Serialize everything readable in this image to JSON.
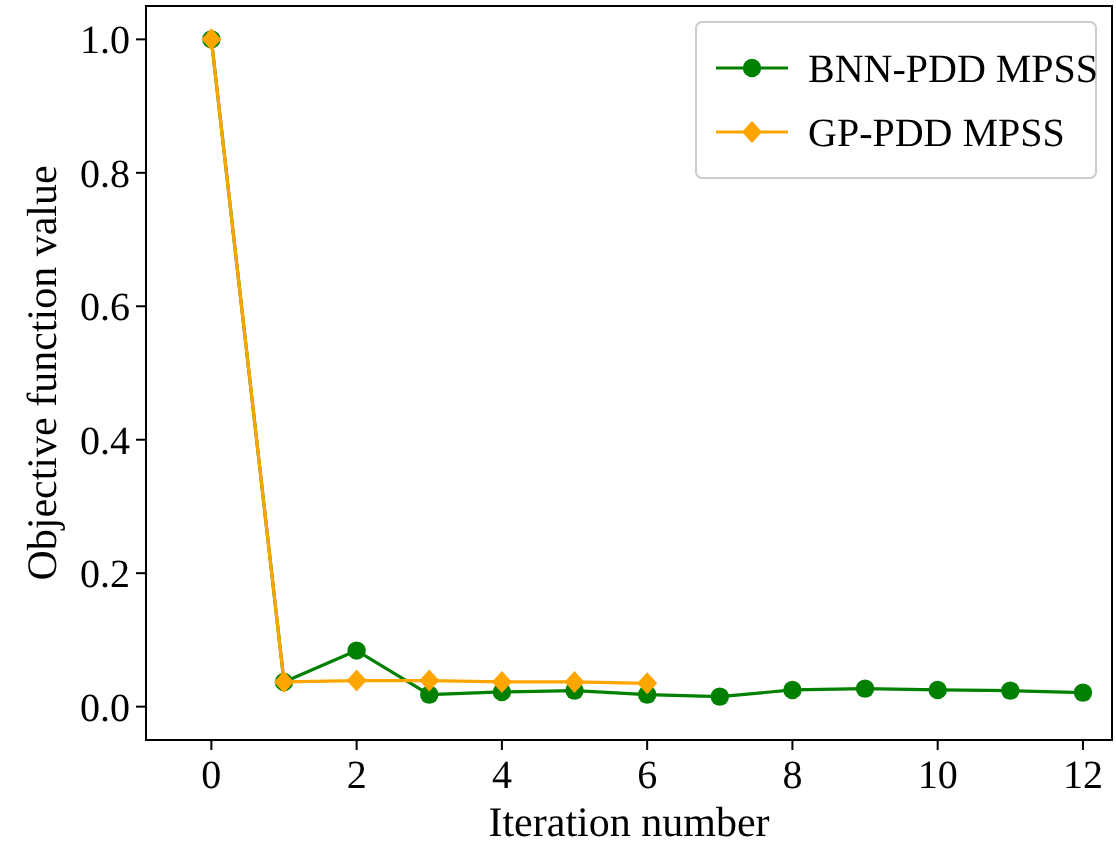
{
  "chart_data": {
    "type": "line",
    "xlabel": "Iteration number",
    "ylabel": "Objective function value",
    "xlim": [
      -0.9,
      12.4
    ],
    "ylim": [
      -0.05,
      1.05
    ],
    "xticks": [
      0,
      2,
      4,
      6,
      8,
      10,
      12
    ],
    "yticks": [
      {
        "value": 0,
        "label": "0.0"
      },
      {
        "value": 0.2,
        "label": "0.2"
      },
      {
        "value": 0.4,
        "label": "0.4"
      },
      {
        "value": 0.6,
        "label": "0.6"
      },
      {
        "value": 0.8,
        "label": "0.8"
      },
      {
        "value": 1,
        "label": "1.0"
      }
    ],
    "legend": "top right",
    "grid": false,
    "series": [
      {
        "name": "BNN-PDD MPSS",
        "color": "#008000",
        "marker": "circle",
        "x": [
          0,
          1,
          2,
          3,
          4,
          5,
          6,
          7,
          8,
          9,
          10,
          11,
          12
        ],
        "values": [
          1.0,
          0.037,
          0.084,
          0.018,
          0.022,
          0.024,
          0.018,
          0.015,
          0.025,
          0.027,
          0.025,
          0.024,
          0.021
        ]
      },
      {
        "name": "GP-PDD MPSS",
        "color": "#ffa500",
        "marker": "diamond",
        "x": [
          0,
          1,
          2,
          3,
          4,
          5,
          6
        ],
        "values": [
          1.0,
          0.037,
          0.039,
          0.039,
          0.037,
          0.037,
          0.035
        ]
      }
    ]
  }
}
